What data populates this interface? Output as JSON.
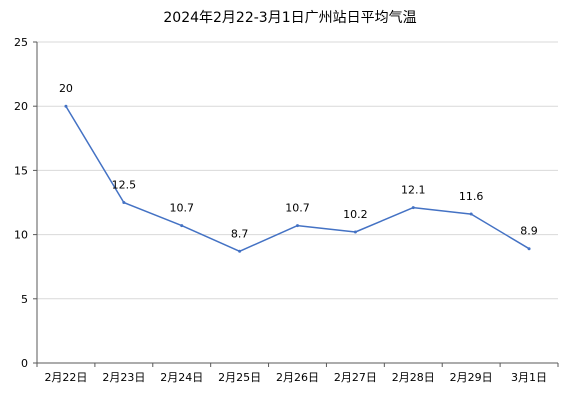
{
  "chart_data": {
    "type": "line",
    "title": "2024年2月22-3月1日广州站日平均气温",
    "xlabel": "",
    "ylabel": "",
    "categories": [
      "2月22日",
      "2月23日",
      "2月24日",
      "2月25日",
      "2月26日",
      "2月27日",
      "2月28日",
      "2月29日",
      "3月1日"
    ],
    "series": [
      {
        "values": [
          20,
          12.5,
          10.7,
          8.7,
          10.7,
          10.2,
          12.1,
          11.6,
          8.9
        ]
      }
    ],
    "data_labels": [
      "20",
      "12.5",
      "10.7",
      "8.7",
      "10.7",
      "10.2",
      "12.1",
      "11.6",
      "8.9"
    ],
    "ylim": [
      0,
      25
    ],
    "yticks": [
      "0",
      "5",
      "10",
      "15",
      "20",
      "25"
    ],
    "grid": true,
    "line_color": "#4472C4",
    "grid_color": "#d9d9d9",
    "axis_color": "#595959"
  }
}
